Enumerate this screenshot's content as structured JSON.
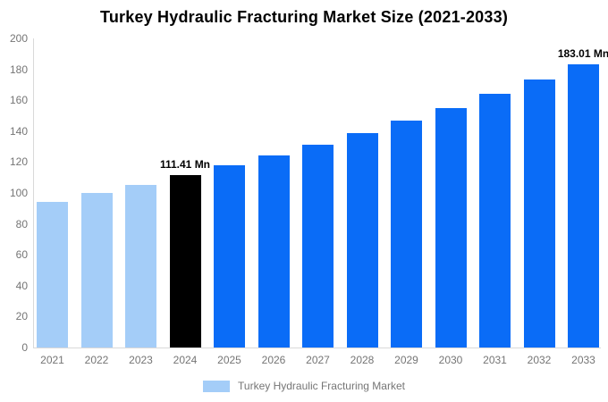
{
  "chart_data": {
    "type": "bar",
    "title": "Turkey Hydraulic Fracturing Market Size (2021-2033)",
    "categories": [
      "2021",
      "2022",
      "2023",
      "2024",
      "2025",
      "2026",
      "2027",
      "2028",
      "2029",
      "2030",
      "2031",
      "2032",
      "2033"
    ],
    "values": [
      94.42,
      99.77,
      105.43,
      111.41,
      117.73,
      124.41,
      131.46,
      138.92,
      146.79,
      155.12,
      163.91,
      173.21,
      183.01
    ],
    "unit": "Mn",
    "xlabel": "",
    "ylabel": "",
    "ylim": [
      0,
      200
    ],
    "yticks": [
      0,
      20,
      40,
      60,
      80,
      100,
      120,
      140,
      160,
      180,
      200
    ],
    "grid": false,
    "legend": {
      "label": "Turkey Hydraulic Fracturing Market",
      "position": "bottom",
      "swatch_color": "#a4cdf8"
    },
    "annotations": [
      {
        "category": "2024",
        "index": 3,
        "text": "111.41 Mn"
      },
      {
        "category": "2033",
        "index": 12,
        "text": "183.01 Mn"
      }
    ],
    "bar_colors": [
      "#a4cdf8",
      "#a4cdf8",
      "#a4cdf8",
      "#000000",
      "#0a6cf7",
      "#0a6cf7",
      "#0a6cf7",
      "#0a6cf7",
      "#0a6cf7",
      "#0a6cf7",
      "#0a6cf7",
      "#0a6cf7",
      "#0a6cf7"
    ],
    "colors": {
      "historical_bar": "#a4cdf8",
      "base_year_bar": "#000000",
      "forecast_bar": "#0a6cf7",
      "axis_line": "#d9d9d9",
      "tick_label": "#757575",
      "title": "#000000",
      "annotation": "#000000",
      "background": "#ffffff"
    }
  }
}
